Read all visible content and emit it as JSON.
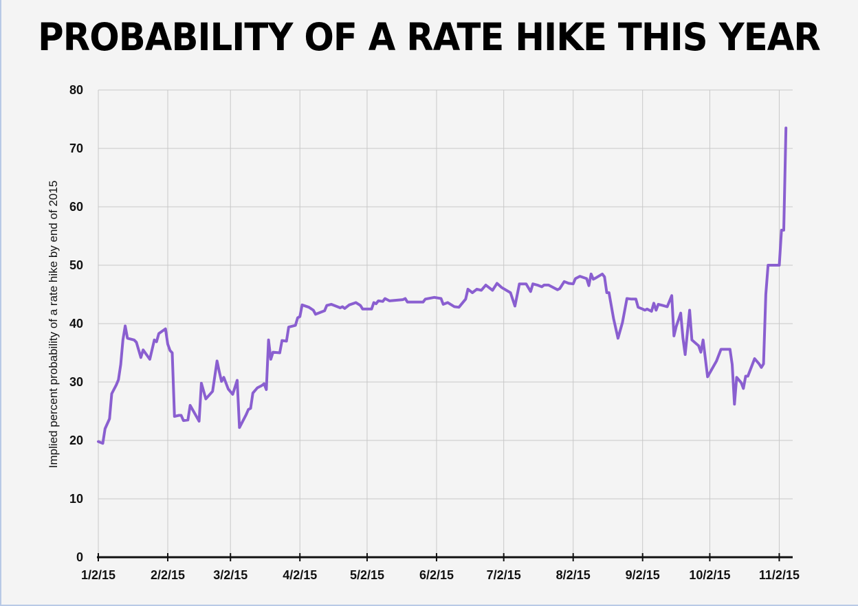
{
  "chart_data": {
    "type": "line",
    "title": "PROBABILITY OF A RATE HIKE THIS YEAR",
    "xlabel": "",
    "ylabel": "Implied percent probability of a rate hike by end of 2015",
    "ylim": [
      0,
      80
    ],
    "yticks": [
      0,
      10,
      20,
      30,
      40,
      50,
      60,
      70,
      80
    ],
    "xlim": [
      "2015-01-02",
      "2015-11-08"
    ],
    "xticks": [
      {
        "date": "2015-01-02",
        "label": "1/2/15"
      },
      {
        "date": "2015-02-02",
        "label": "2/2/15"
      },
      {
        "date": "2015-03-02",
        "label": "3/2/15"
      },
      {
        "date": "2015-04-02",
        "label": "4/2/15"
      },
      {
        "date": "2015-05-02",
        "label": "5/2/15"
      },
      {
        "date": "2015-06-02",
        "label": "6/2/15"
      },
      {
        "date": "2015-07-02",
        "label": "7/2/15"
      },
      {
        "date": "2015-08-02",
        "label": "8/2/15"
      },
      {
        "date": "2015-09-02",
        "label": "9/2/15"
      },
      {
        "date": "2015-10-02",
        "label": "10/2/15"
      },
      {
        "date": "2015-11-02",
        "label": "11/2/15"
      }
    ],
    "grid": true,
    "line_color": "#8a5fd0",
    "series": [
      {
        "points": [
          [
            "2015-01-02",
            19.8
          ],
          [
            "2015-01-04",
            19.5
          ],
          [
            "2015-01-05",
            22
          ],
          [
            "2015-01-07",
            23.7
          ],
          [
            "2015-01-08",
            28
          ],
          [
            "2015-01-10",
            29.5
          ],
          [
            "2015-01-11",
            30.4
          ],
          [
            "2015-01-12",
            33
          ],
          [
            "2015-01-13",
            37.2
          ],
          [
            "2015-01-14",
            39.6
          ],
          [
            "2015-01-15",
            37.5
          ],
          [
            "2015-01-18",
            37.2
          ],
          [
            "2015-01-19",
            36.8
          ],
          [
            "2015-01-21",
            34.2
          ],
          [
            "2015-01-22",
            35.5
          ],
          [
            "2015-01-25",
            33.9
          ],
          [
            "2015-01-27",
            37.2
          ],
          [
            "2015-01-28",
            36.9
          ],
          [
            "2015-01-29",
            38.3
          ],
          [
            "2015-02-01",
            39.1
          ],
          [
            "2015-02-02",
            36.5
          ],
          [
            "2015-02-03",
            35.4
          ],
          [
            "2015-02-04",
            35
          ],
          [
            "2015-02-05",
            24.1
          ],
          [
            "2015-02-07",
            24.3
          ],
          [
            "2015-02-08",
            24.3
          ],
          [
            "2015-02-09",
            23.4
          ],
          [
            "2015-02-11",
            23.5
          ],
          [
            "2015-02-12",
            26
          ],
          [
            "2015-02-16",
            23.3
          ],
          [
            "2015-02-17",
            29.8
          ],
          [
            "2015-02-19",
            27.1
          ],
          [
            "2015-02-22",
            28.4
          ],
          [
            "2015-02-24",
            33.6
          ],
          [
            "2015-02-25",
            31.8
          ],
          [
            "2015-02-26",
            30.1
          ],
          [
            "2015-02-27",
            30.8
          ],
          [
            "2015-03-01",
            28.8
          ],
          [
            "2015-03-03",
            27.9
          ],
          [
            "2015-03-05",
            30.3
          ],
          [
            "2015-03-06",
            22.2
          ],
          [
            "2015-03-09",
            24.4
          ],
          [
            "2015-03-10",
            25.3
          ],
          [
            "2015-03-11",
            25.5
          ],
          [
            "2015-03-12",
            28.1
          ],
          [
            "2015-03-14",
            29
          ],
          [
            "2015-03-16",
            29.4
          ],
          [
            "2015-03-17",
            29.7
          ],
          [
            "2015-03-18",
            28.7
          ],
          [
            "2015-03-19",
            37.2
          ],
          [
            "2015-03-20",
            33.9
          ],
          [
            "2015-03-21",
            35.1
          ],
          [
            "2015-03-24",
            35
          ],
          [
            "2015-03-25",
            37.1
          ],
          [
            "2015-03-27",
            37
          ],
          [
            "2015-03-28",
            39.4
          ],
          [
            "2015-03-31",
            39.7
          ],
          [
            "2015-04-01",
            41
          ],
          [
            "2015-04-02",
            41.2
          ],
          [
            "2015-04-03",
            43.2
          ],
          [
            "2015-04-06",
            42.8
          ],
          [
            "2015-04-08",
            42.3
          ],
          [
            "2015-04-09",
            41.6
          ],
          [
            "2015-04-13",
            42.2
          ],
          [
            "2015-04-14",
            43.1
          ],
          [
            "2015-04-16",
            43.3
          ],
          [
            "2015-04-20",
            42.7
          ],
          [
            "2015-04-21",
            42.9
          ],
          [
            "2015-04-22",
            42.6
          ],
          [
            "2015-04-24",
            43.2
          ],
          [
            "2015-04-27",
            43.6
          ],
          [
            "2015-04-29",
            43.1
          ],
          [
            "2015-04-30",
            42.5
          ],
          [
            "2015-05-04",
            42.5
          ],
          [
            "2015-05-05",
            43.6
          ],
          [
            "2015-05-06",
            43.4
          ],
          [
            "2015-05-07",
            43.9
          ],
          [
            "2015-05-09",
            43.8
          ],
          [
            "2015-05-10",
            44.3
          ],
          [
            "2015-05-12",
            43.9
          ],
          [
            "2015-05-18",
            44.1
          ],
          [
            "2015-05-19",
            44.3
          ],
          [
            "2015-05-20",
            43.7
          ],
          [
            "2015-05-27",
            43.7
          ],
          [
            "2015-05-28",
            44.2
          ],
          [
            "2015-06-01",
            44.5
          ],
          [
            "2015-06-04",
            44.3
          ],
          [
            "2015-06-05",
            43.3
          ],
          [
            "2015-06-07",
            43.6
          ],
          [
            "2015-06-10",
            42.9
          ],
          [
            "2015-06-12",
            42.8
          ],
          [
            "2015-06-15",
            44.2
          ],
          [
            "2015-06-16",
            45.9
          ],
          [
            "2015-06-18",
            45.3
          ],
          [
            "2015-06-20",
            45.9
          ],
          [
            "2015-06-22",
            45.7
          ],
          [
            "2015-06-24",
            46.6
          ],
          [
            "2015-06-27",
            45.7
          ],
          [
            "2015-06-29",
            46.9
          ],
          [
            "2015-07-01",
            46.2
          ],
          [
            "2015-07-05",
            45.3
          ],
          [
            "2015-07-07",
            43
          ],
          [
            "2015-07-09",
            46.8
          ],
          [
            "2015-07-12",
            46.8
          ],
          [
            "2015-07-14",
            45.5
          ],
          [
            "2015-07-15",
            46.8
          ],
          [
            "2015-07-17",
            46.6
          ],
          [
            "2015-07-19",
            46.3
          ],
          [
            "2015-07-20",
            46.6
          ],
          [
            "2015-07-22",
            46.6
          ],
          [
            "2015-07-26",
            45.8
          ],
          [
            "2015-07-27",
            46
          ],
          [
            "2015-07-29",
            47.2
          ],
          [
            "2015-07-31",
            46.9
          ],
          [
            "2015-08-02",
            46.8
          ],
          [
            "2015-08-03",
            47.7
          ],
          [
            "2015-08-05",
            48.1
          ],
          [
            "2015-08-08",
            47.7
          ],
          [
            "2015-08-09",
            46.5
          ],
          [
            "2015-08-10",
            48.5
          ],
          [
            "2015-08-11",
            47.6
          ],
          [
            "2015-08-12",
            47.8
          ],
          [
            "2015-08-15",
            48.5
          ],
          [
            "2015-08-16",
            48
          ],
          [
            "2015-08-17",
            45.3
          ],
          [
            "2015-08-18",
            45.3
          ],
          [
            "2015-08-20",
            40.9
          ],
          [
            "2015-08-22",
            37.5
          ],
          [
            "2015-08-24",
            40.2
          ],
          [
            "2015-08-26",
            44.3
          ],
          [
            "2015-08-28",
            44.2
          ],
          [
            "2015-08-30",
            44.2
          ],
          [
            "2015-08-31",
            42.8
          ],
          [
            "2015-09-02",
            42.5
          ],
          [
            "2015-09-03",
            42.3
          ],
          [
            "2015-09-04",
            42.5
          ],
          [
            "2015-09-06",
            42.1
          ],
          [
            "2015-09-07",
            43.5
          ],
          [
            "2015-09-08",
            42.3
          ],
          [
            "2015-09-09",
            43.3
          ],
          [
            "2015-09-11",
            43.1
          ],
          [
            "2015-09-13",
            42.9
          ],
          [
            "2015-09-15",
            44.8
          ],
          [
            "2015-09-16",
            37.9
          ],
          [
            "2015-09-17",
            39.5
          ],
          [
            "2015-09-19",
            41.8
          ],
          [
            "2015-09-20",
            37.5
          ],
          [
            "2015-09-21",
            34.7
          ],
          [
            "2015-09-23",
            42.3
          ],
          [
            "2015-09-24",
            37.2
          ],
          [
            "2015-09-27",
            36.2
          ],
          [
            "2015-09-28",
            35.1
          ],
          [
            "2015-09-29",
            37.2
          ],
          [
            "2015-10-01",
            30.9
          ],
          [
            "2015-10-05",
            33.6
          ],
          [
            "2015-10-07",
            35.6
          ],
          [
            "2015-10-11",
            35.6
          ],
          [
            "2015-10-12",
            33
          ],
          [
            "2015-10-13",
            26.2
          ],
          [
            "2015-10-14",
            30.8
          ],
          [
            "2015-10-16",
            29.9
          ],
          [
            "2015-10-17",
            28.9
          ],
          [
            "2015-10-18",
            31
          ],
          [
            "2015-10-19",
            31
          ],
          [
            "2015-10-22",
            34
          ],
          [
            "2015-10-24",
            33.1
          ],
          [
            "2015-10-25",
            32.5
          ],
          [
            "2015-10-26",
            33.1
          ],
          [
            "2015-10-27",
            45
          ],
          [
            "2015-10-28",
            50
          ],
          [
            "2015-11-01",
            50
          ],
          [
            "2015-11-02",
            50
          ],
          [
            "2015-11-03",
            56
          ],
          [
            "2015-11-04",
            56
          ],
          [
            "2015-11-05",
            73.5
          ]
        ]
      }
    ]
  }
}
